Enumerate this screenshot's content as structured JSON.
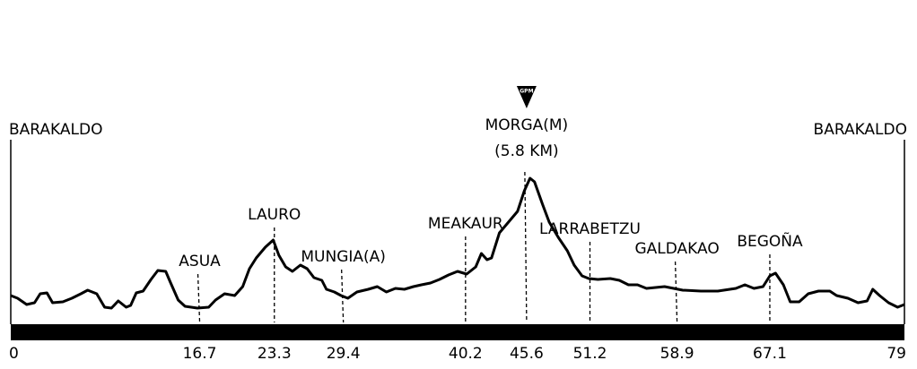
{
  "chart_data": {
    "type": "line",
    "x": [
      0,
      0.6,
      1.4,
      2.1,
      2.6,
      3.2,
      3.7,
      4.6,
      5.4,
      6.2,
      6.8,
      7.6,
      8.3,
      8.9,
      9.5,
      10.2,
      10.6,
      11.1,
      11.7,
      12.4,
      13.0,
      13.7,
      14.1,
      14.8,
      15.4,
      16.5,
      17.5,
      18.1,
      18.9,
      19.8,
      20.5,
      21.1,
      21.7,
      22.5,
      23.2,
      23.7,
      24.3,
      24.9,
      25.6,
      26.2,
      26.8,
      27.5,
      27.9,
      28.6,
      29.2,
      29.8,
      30.6,
      31.6,
      32.4,
      33.2,
      34.0,
      34.8,
      35.6,
      36.3,
      37.1,
      37.9,
      38.7,
      39.5,
      40.3,
      41.1,
      41.6,
      42.1,
      42.5,
      43.2,
      44.0,
      44.8,
      45.4,
      45.9,
      46.3,
      47.0,
      47.6,
      48.4,
      49.2,
      49.8,
      50.5,
      51.1,
      51.9,
      53.0,
      53.8,
      54.6,
      55.4,
      56.2,
      57.8,
      59.4,
      61.0,
      62.5,
      64.1,
      64.9,
      65.7,
      66.5,
      67.1,
      67.6,
      68.3,
      68.9,
      69.7,
      70.5,
      71.4,
      72.4,
      73.0,
      74.0,
      74.9,
      75.7,
      76.2,
      76.8,
      77.6,
      78.4,
      79
    ],
    "values": [
      32,
      29,
      22,
      24,
      34,
      35,
      24,
      25,
      29,
      34,
      38,
      34,
      19,
      18,
      26,
      19,
      21,
      35,
      37,
      50,
      60,
      59,
      47,
      27,
      20,
      18,
      19,
      27,
      34,
      32,
      42,
      62,
      74,
      86,
      94,
      77,
      64,
      59,
      66,
      62,
      52,
      49,
      39,
      36,
      32,
      29,
      36,
      39,
      42,
      36,
      40,
      39,
      42,
      44,
      46,
      50,
      55,
      59,
      56,
      64,
      79,
      72,
      74,
      102,
      114,
      126,
      149,
      163,
      159,
      134,
      114,
      97,
      82,
      66,
      54,
      51,
      50,
      51,
      49,
      44,
      44,
      40,
      42,
      38,
      37,
      37,
      40,
      44,
      40,
      42,
      54,
      57,
      44,
      25,
      25,
      34,
      37,
      37,
      32,
      29,
      24,
      26,
      39,
      32,
      24,
      19,
      22
    ],
    "color": "#000000",
    "xlim": [
      0,
      79
    ],
    "ylim": [
      0,
      200
    ],
    "xticks": [
      0,
      16.7,
      23.3,
      29.4,
      40.2,
      45.6,
      51.2,
      58.9,
      67.1,
      79
    ],
    "places": [
      {
        "name": "BARAKALDO",
        "km": 0
      },
      {
        "name": "ASUA",
        "km": 16.7
      },
      {
        "name": "LAURO",
        "km": 23.3
      },
      {
        "name": "MUNGIA(A)",
        "km": 29.4
      },
      {
        "name": "MEAKAUR",
        "km": 40.2
      },
      {
        "name": "MORGA(M)",
        "sublabel": "(5.8 KM)",
        "badge": "GPM",
        "km": 45.6
      },
      {
        "name": "LARRABETZU",
        "km": 51.2
      },
      {
        "name": "GALDAKAO",
        "km": 58.9
      },
      {
        "name": "BEGOÑA",
        "km": 67.1
      },
      {
        "name": "BARAKALDO",
        "km": 79
      }
    ]
  }
}
